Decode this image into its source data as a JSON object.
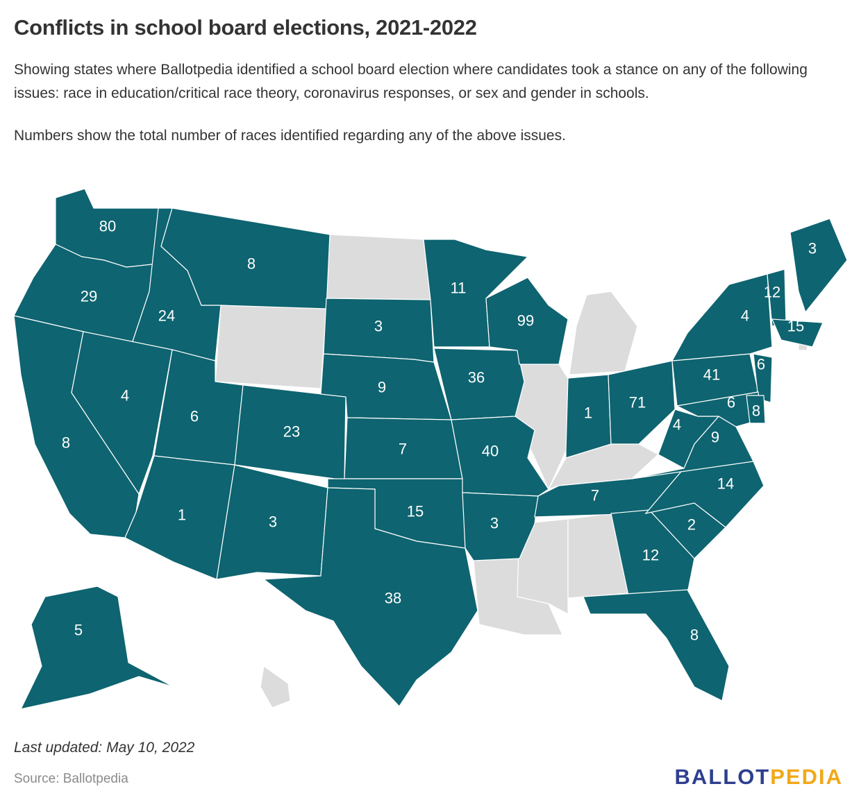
{
  "title": "Conflicts in school board elections, 2021-2022",
  "description": "Showing states where Ballotpedia identified a school board election where candidates took a stance on any of the following issues: race in education/critical race theory, coronavirus responses, or sex and gender in schools.",
  "note": "Numbers show the total number of races identified regarding any of the above issues.",
  "updated": "Last updated: May 10, 2022",
  "source": "Source: Ballotpedia",
  "logo": {
    "part1": "BALLOT",
    "part2": "PEDIA"
  },
  "colors": {
    "conflict": "#0e6470",
    "none": "#dcdcdc",
    "logo_blue": "#2f3f8f",
    "logo_gold": "#f2a819"
  },
  "states": [
    {
      "id": "WA",
      "value": "80"
    },
    {
      "id": "OR",
      "value": "29"
    },
    {
      "id": "CA",
      "value": "8"
    },
    {
      "id": "ID",
      "value": "24"
    },
    {
      "id": "NV",
      "value": "4"
    },
    {
      "id": "MT",
      "value": "8"
    },
    {
      "id": "UT",
      "value": "6"
    },
    {
      "id": "AZ",
      "value": "1"
    },
    {
      "id": "CO",
      "value": "23"
    },
    {
      "id": "NM",
      "value": "3"
    },
    {
      "id": "SD",
      "value": "3"
    },
    {
      "id": "NE",
      "value": "9"
    },
    {
      "id": "KS",
      "value": "7"
    },
    {
      "id": "OK",
      "value": "15"
    },
    {
      "id": "TX",
      "value": "38"
    },
    {
      "id": "MN",
      "value": "11"
    },
    {
      "id": "IA",
      "value": "36"
    },
    {
      "id": "MO",
      "value": "40"
    },
    {
      "id": "AR",
      "value": "3"
    },
    {
      "id": "WI",
      "value": "99"
    },
    {
      "id": "IN",
      "value": "1"
    },
    {
      "id": "OH",
      "value": "71"
    },
    {
      "id": "TN",
      "value": "7"
    },
    {
      "id": "GA",
      "value": "12"
    },
    {
      "id": "FL",
      "value": "8"
    },
    {
      "id": "SC",
      "value": "2"
    },
    {
      "id": "NC",
      "value": "14"
    },
    {
      "id": "VA",
      "value": "9"
    },
    {
      "id": "WV",
      "value": "4"
    },
    {
      "id": "PA",
      "value": "41"
    },
    {
      "id": "NY",
      "value": "4"
    },
    {
      "id": "VT",
      "value": "12"
    },
    {
      "id": "ME",
      "value": "3"
    },
    {
      "id": "MA",
      "value": "15"
    },
    {
      "id": "NJ",
      "value": "6"
    },
    {
      "id": "MD",
      "value": "6"
    },
    {
      "id": "DE",
      "value": "8"
    },
    {
      "id": "AK",
      "value": "5"
    }
  ],
  "no_conflict_states": [
    "ND",
    "WY",
    "IL",
    "MI",
    "KY",
    "LA",
    "MS",
    "AL",
    "HI",
    "RI"
  ]
}
